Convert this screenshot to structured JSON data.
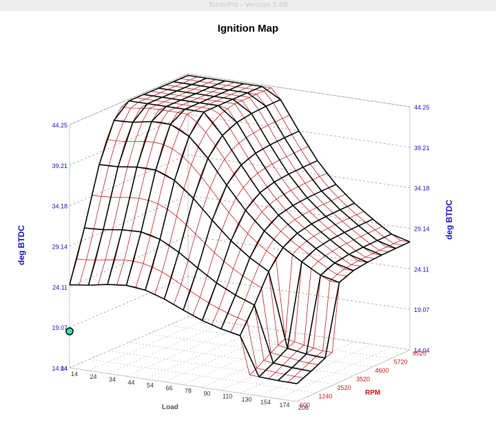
{
  "window": {
    "title": "TunerPro - Version 5.00"
  },
  "chart_data": {
    "type": "surface",
    "title": "Ignition Map",
    "zlabel": "deg BTDC",
    "xlabel": "Load",
    "ylabel": "RPM",
    "z_range": [
      14.04,
      44.25
    ],
    "z_ticks": [
      "14.04",
      "19.07",
      "24.11",
      "29.14",
      "34.18",
      "39.21",
      "44.25"
    ],
    "load_ticks": [
      "14",
      "24",
      "34",
      "44",
      "54",
      "66",
      "78",
      "90",
      "110",
      "130",
      "154",
      "174",
      "206"
    ],
    "rpm_ticks": [
      "600",
      "1240",
      "2520",
      "3520",
      "4600",
      "5720",
      "6520"
    ],
    "load_axis": [
      14,
      24,
      34,
      44,
      54,
      66,
      78,
      90,
      110,
      130,
      154,
      174,
      206
    ],
    "rpm_axis": [
      600,
      1240,
      2520,
      3520,
      4600,
      5720,
      6520
    ],
    "grid": true,
    "colors": {
      "axis_labels": "#1010c8",
      "rpm_labels": "#d01010",
      "grid_lines": "#b00000",
      "highlight": "#2ee6b0"
    }
  }
}
